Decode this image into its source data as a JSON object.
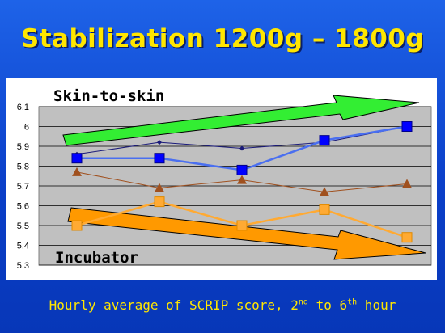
{
  "slide": {
    "title": "Stabilization 1200g – 1800g",
    "caption_main": "Hourly average of SCRIP score, 2",
    "caption_sup1": "nd",
    "caption_mid": " to 6",
    "caption_sup2": "th",
    "caption_end": " hour"
  },
  "colors": {
    "background": "#0b3fc9",
    "title": "#ffe600",
    "plot_area": "#c0c0c0",
    "skin_arrow": "#33ee33",
    "incubator_arrow": "#ff9900"
  },
  "chart_data": {
    "type": "line",
    "x": [
      1,
      2,
      3,
      4,
      5
    ],
    "ylim": [
      5.3,
      6.1
    ],
    "yticks": [
      "6.1",
      "6",
      "5.9",
      "5.8",
      "5.7",
      "5.6",
      "5.5",
      "5.4",
      "5.3"
    ],
    "grid": true,
    "series": [
      {
        "values": [
          5.86,
          5.92,
          5.89,
          5.92,
          6.0
        ],
        "color": "#1a1a7a",
        "marker": "diamond"
      },
      {
        "values": [
          5.84,
          5.84,
          5.78,
          5.93,
          6.0
        ],
        "color": "#4a6ff0",
        "marker": "square"
      },
      {
        "values": [
          5.77,
          5.69,
          5.73,
          5.67,
          5.71
        ],
        "color": "#a0501e",
        "marker": "triangle"
      },
      {
        "values": [
          5.5,
          5.62,
          5.5,
          5.58,
          5.44
        ],
        "color": "#ffaa33",
        "marker": "square"
      }
    ],
    "annotations": [
      "Skin-to-skin",
      "Incubator"
    ]
  }
}
